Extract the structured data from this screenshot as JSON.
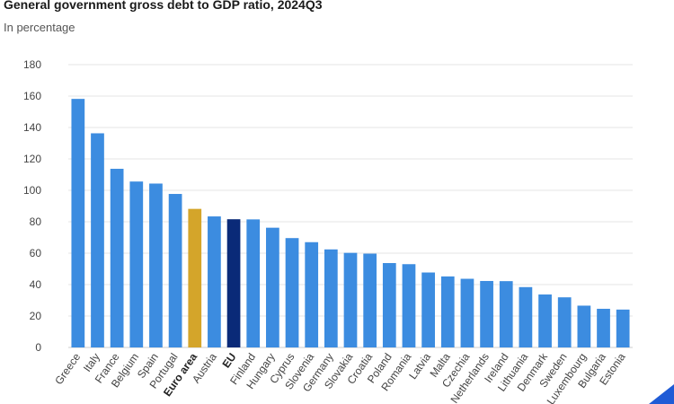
{
  "chart_data": {
    "type": "bar",
    "title": "General government gross debt to GDP ratio, 2024Q3",
    "subtitle": "In percentage",
    "xlabel": "",
    "ylabel": "",
    "ylim": [
      0,
      180
    ],
    "yticks": [
      0,
      20,
      40,
      60,
      80,
      100,
      120,
      140,
      160,
      180
    ],
    "grid": true,
    "categories": [
      "Greece",
      "Italy",
      "France",
      "Belgium",
      "Spain",
      "Portugal",
      "Euro area",
      "Austria",
      "EU",
      "Finland",
      "Hungary",
      "Cyprus",
      "Slovenia",
      "Germany",
      "Slovakia",
      "Croatia",
      "Poland",
      "Romania",
      "Latvia",
      "Malta",
      "Czechia",
      "Netherlands",
      "Ireland",
      "Lithuania",
      "Denmark",
      "Sweden",
      "Luxembourg",
      "Bulgaria",
      "Estonia"
    ],
    "values": [
      158.2,
      136.3,
      113.7,
      105.6,
      104.3,
      97.7,
      88.2,
      83.4,
      81.6,
      81.5,
      76.2,
      69.6,
      67.0,
      62.4,
      60.2,
      59.7,
      53.7,
      53.0,
      47.7,
      45.2,
      43.7,
      42.3,
      42.2,
      38.4,
      33.7,
      31.9,
      26.6,
      24.6,
      24.1
    ],
    "bold_categories": [
      "Euro area",
      "EU"
    ],
    "colors": {
      "default": "#3c8ce0",
      "Euro area": "#d4a52a",
      "EU": "#0a2a78",
      "grid": "#e4e4e4",
      "axis": "#cccccc"
    }
  }
}
